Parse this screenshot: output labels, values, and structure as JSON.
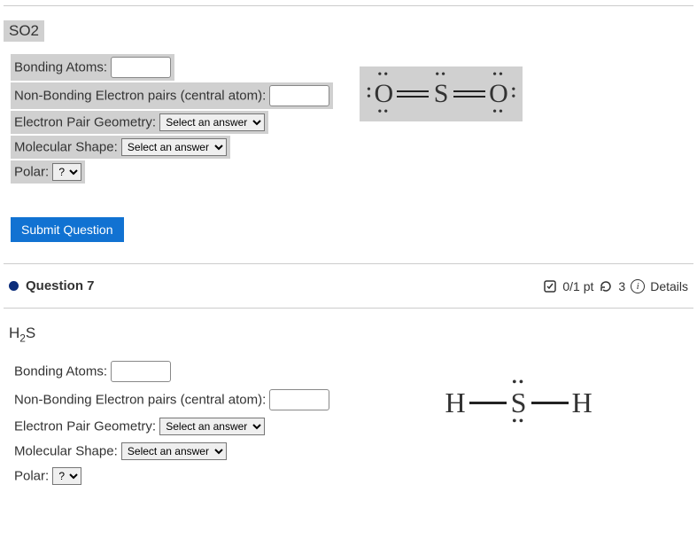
{
  "q6": {
    "formula_html": "SO2",
    "fields": {
      "bonding_label": "Bonding Atoms:",
      "nonbonding_label": "Non-Bonding Electron pairs (central atom):",
      "epg_label": "Electron Pair Geometry:",
      "shape_label": "Molecular Shape:",
      "polar_label": "Polar:",
      "select_placeholder": "Select an answer",
      "polar_placeholder": "?"
    },
    "highlighted": true,
    "submit_label": "Submit Question",
    "lewis": {
      "type": "linear",
      "atoms": [
        "O",
        "S",
        "O"
      ],
      "bonds": [
        "double",
        "double"
      ],
      "lone_pairs": {
        "0": {
          "top": true,
          "bottom": true,
          "left": true
        },
        "1": {
          "top": true
        },
        "2": {
          "top": true,
          "bottom": true,
          "right": true
        }
      },
      "font_family": "Georgia",
      "font_size_pt": 22,
      "bg_color": "#d0d0d0"
    }
  },
  "q7": {
    "header": {
      "title": "Question 7",
      "points": "0/1 pt",
      "retries": "3",
      "details_label": "Details"
    },
    "formula_html": "H<sub>2</sub>S",
    "fields": {
      "bonding_label": "Bonding Atoms:",
      "nonbonding_label": "Non-Bonding Electron pairs (central atom):",
      "epg_label": "Electron Pair Geometry:",
      "shape_label": "Molecular Shape:",
      "polar_label": "Polar:",
      "select_placeholder": "Select an answer",
      "polar_placeholder": "?"
    },
    "highlighted": false,
    "lewis": {
      "type": "linear",
      "atoms": [
        "H",
        "S",
        "H"
      ],
      "bonds": [
        "single",
        "single"
      ],
      "lone_pairs": {
        "1": {
          "top": true,
          "bottom": true
        }
      },
      "font_family": "Georgia",
      "font_size_pt": 22,
      "bg_color": "transparent"
    }
  },
  "colors": {
    "highlight": "#d0d0d0",
    "submit_bg": "#1172d2",
    "submit_fg": "#ffffff",
    "divider": "#cccccc",
    "bullet": "#0b2c7a"
  }
}
